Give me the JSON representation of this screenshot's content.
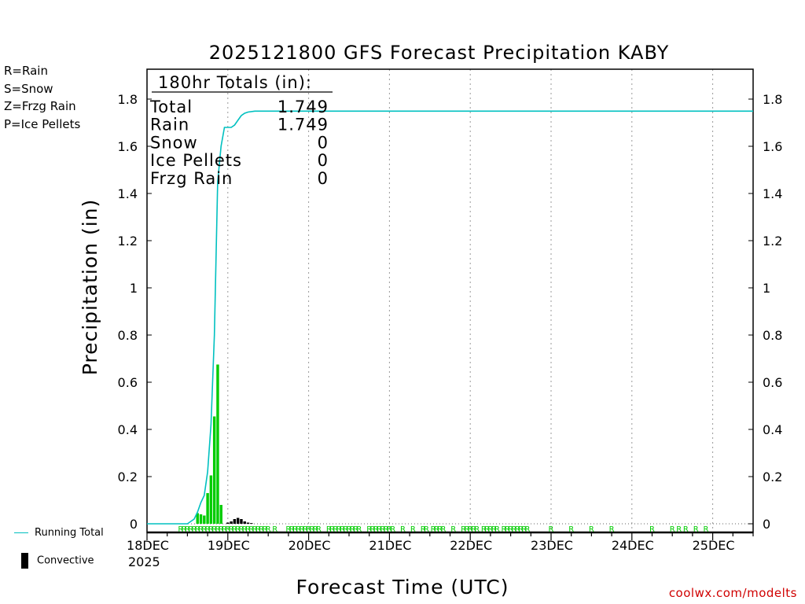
{
  "chart_data": {
    "type": "bar",
    "title": "2025121800 GFS Forecast Precipitation KABY",
    "xlabel": "Forecast Time (UTC)",
    "ylabel": "Precipitation (in)",
    "ylim": [
      0,
      1.9
    ],
    "yticks": [
      0,
      0.2,
      0.4,
      0.6,
      0.8,
      1,
      1.2,
      1.4,
      1.6,
      1.8
    ],
    "ytick_labels": [
      "0",
      "0.2",
      "0.4",
      "0.6",
      "0.8",
      "1",
      "1.2",
      "1.4",
      "1.6",
      "1.8"
    ],
    "xlim_hours": [
      0,
      180
    ],
    "xticks_hours": [
      0,
      24,
      48,
      72,
      96,
      120,
      144,
      168
    ],
    "xtick_labels": [
      "18DEC",
      "19DEC",
      "20DEC",
      "21DEC",
      "22DEC",
      "23DEC",
      "24DEC",
      "25DEC"
    ],
    "xyear_label": "2025",
    "grid": "vertical dotted",
    "series": [
      {
        "name": "Rain",
        "kind": "bar",
        "color": "#00cc00",
        "bar_hours": [
          15,
          16,
          17,
          18,
          19,
          20,
          21,
          22,
          23
        ],
        "values": [
          0.045,
          0.04,
          0.035,
          0.13,
          0.205,
          0.455,
          0.675,
          0.08,
          0.0
        ]
      },
      {
        "name": "Convective",
        "kind": "bar",
        "color": "#000000",
        "bar_hours": [
          24,
          25,
          26,
          27,
          28,
          29,
          30,
          31
        ],
        "values": [
          0.005,
          0.01,
          0.02,
          0.025,
          0.02,
          0.01,
          0.005,
          0.003
        ]
      },
      {
        "name": "Running Total",
        "kind": "line",
        "color": "#00c0c0",
        "x_hours": [
          0,
          12,
          14,
          15,
          16,
          17,
          18,
          19,
          20,
          21,
          22,
          23,
          24,
          25,
          26,
          27,
          28,
          29,
          30,
          32,
          36,
          48,
          72,
          120,
          180
        ],
        "values": [
          0,
          0,
          0.02,
          0.05,
          0.09,
          0.12,
          0.22,
          0.42,
          0.8,
          1.45,
          1.6,
          1.68,
          1.68,
          1.68,
          1.69,
          1.71,
          1.73,
          1.74,
          1.745,
          1.749,
          1.749,
          1.749,
          1.749,
          1.749,
          1.749
        ]
      }
    ],
    "precip_type_markers": {
      "letter": "R",
      "color": "#00cc00",
      "hours": [
        10,
        11,
        12,
        13,
        14,
        15,
        16,
        17,
        18,
        19,
        20,
        21,
        22,
        23,
        24,
        25,
        26,
        27,
        28,
        29,
        30,
        31,
        32,
        33,
        34,
        35,
        36,
        38,
        42,
        43,
        44,
        45,
        46,
        47,
        48,
        49,
        50,
        51,
        54,
        55,
        56,
        57,
        58,
        59,
        60,
        61,
        62,
        63,
        66,
        67,
        68,
        69,
        70,
        71,
        72,
        73,
        76,
        79,
        82,
        83,
        85,
        86,
        87,
        88,
        91,
        94,
        95,
        96,
        97,
        98,
        100,
        101,
        102,
        103,
        104,
        106,
        107,
        108,
        109,
        110,
        111,
        112,
        113,
        120,
        126,
        132,
        138,
        150,
        156,
        158,
        160,
        163,
        166
      ]
    },
    "totals_box": {
      "header": "180hr Totals (in):",
      "rows": [
        {
          "label": "Total",
          "value": "1.749"
        },
        {
          "label": "Rain",
          "value": "1.749"
        },
        {
          "label": "Snow",
          "value": "0"
        },
        {
          "label": "Ice Pellets",
          "value": "0"
        },
        {
          "label": "Frzg Rain",
          "value": "0"
        }
      ]
    }
  },
  "key": [
    {
      "text": "R=Rain",
      "color": "#00cc00"
    },
    {
      "text": "S=Snow",
      "color": "#3333ff"
    },
    {
      "text": "Z=Frzg Rain",
      "color": "#ff8c1a"
    },
    {
      "text": "P=Ice Pellets",
      "color": "#e0118a"
    }
  ],
  "legend": {
    "running_total": "Running Total",
    "convective": "Convective"
  },
  "credit": "coolwx.com/modelts"
}
